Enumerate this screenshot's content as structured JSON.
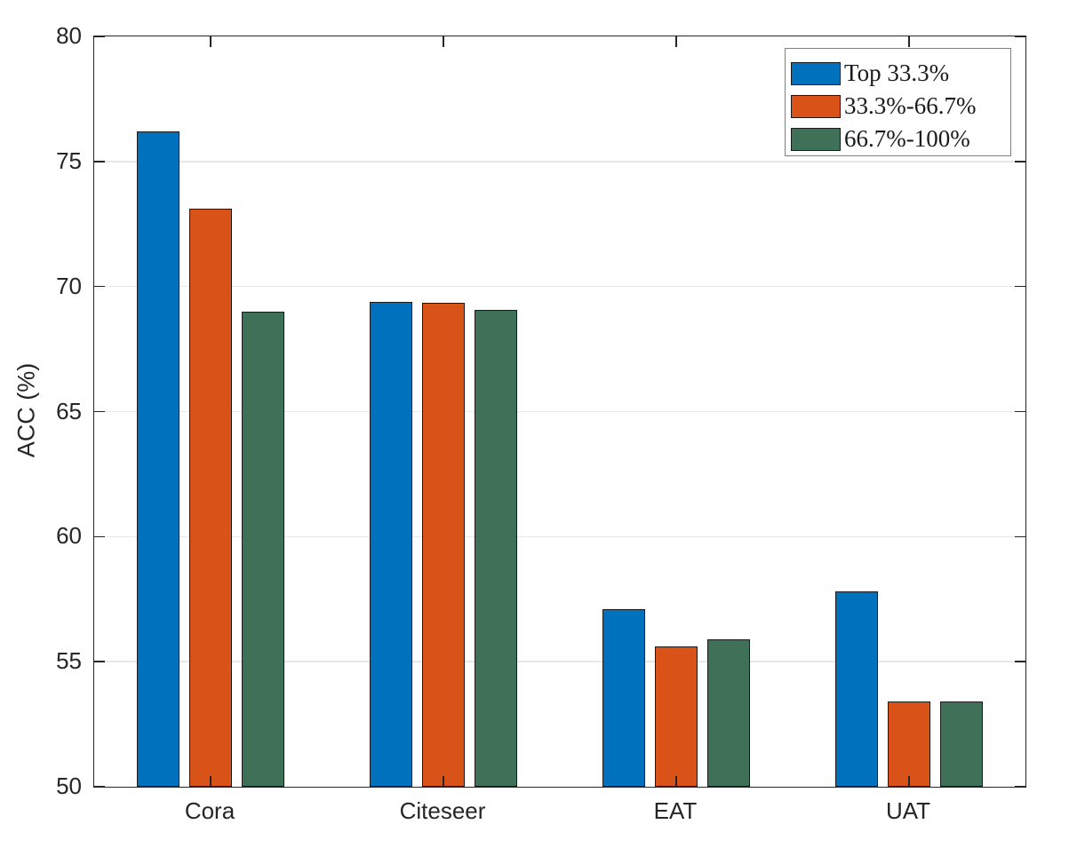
{
  "chart_data": {
    "type": "bar",
    "title": "",
    "xlabel": "",
    "ylabel": "ACC (%)",
    "categories": [
      "Cora",
      "Citeseer",
      "EAT",
      "UAT"
    ],
    "series": [
      {
        "name": "Top 33.3%",
        "color": "#0072BD",
        "values": [
          76.2,
          69.4,
          57.1,
          57.8
        ]
      },
      {
        "name": "33.3%-66.7%",
        "color": "#D95319",
        "values": [
          73.1,
          69.35,
          55.6,
          53.4
        ]
      },
      {
        "name": "66.7%-100%",
        "color": "#3E7157",
        "values": [
          69.0,
          69.05,
          55.9,
          53.4
        ]
      }
    ],
    "ylim": [
      50,
      80
    ],
    "yticks": [
      50,
      55,
      60,
      65,
      70,
      75,
      80
    ],
    "grid": "horizontal",
    "legend_position": "top-right",
    "colors": {
      "axis": "#262626",
      "grid": "#e8e8e8",
      "bar_edge": "#1a1a1a",
      "legend_border": "#7f7f7f",
      "background": "#ffffff"
    }
  }
}
